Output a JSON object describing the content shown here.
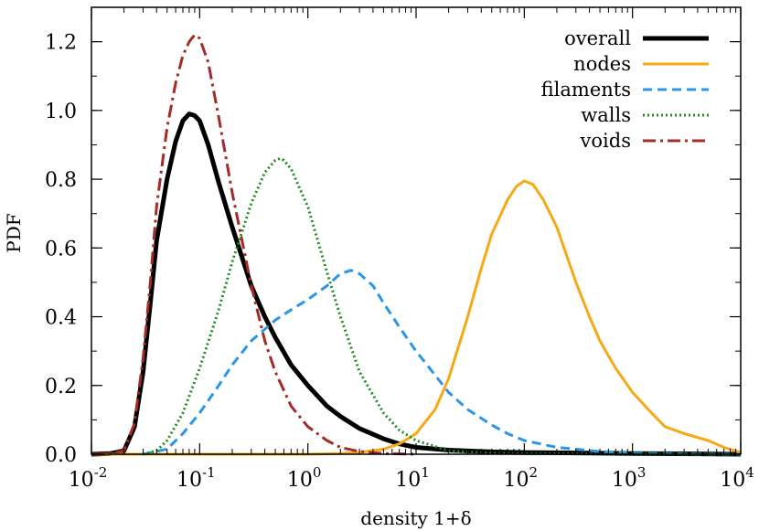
{
  "chart_data": {
    "type": "line",
    "xlabel": "density 1+δ",
    "ylabel": "PDF",
    "x_scale": "log",
    "xlim": [
      0.01,
      10000
    ],
    "ylim": [
      0,
      1.3
    ],
    "x_ticks": [
      {
        "value": 0.01,
        "base": "10",
        "exp": "-2"
      },
      {
        "value": 0.1,
        "base": "10",
        "exp": "-1"
      },
      {
        "value": 1,
        "base": "10",
        "exp": "0"
      },
      {
        "value": 10,
        "base": "10",
        "exp": "1"
      },
      {
        "value": 100,
        "base": "10",
        "exp": "2"
      },
      {
        "value": 1000,
        "base": "10",
        "exp": "3"
      },
      {
        "value": 10000,
        "base": "10",
        "exp": "4"
      }
    ],
    "y_ticks": [
      "0.0",
      "0.2",
      "0.4",
      "0.6",
      "0.8",
      "1.0",
      "1.2"
    ],
    "grid": false,
    "legend_position": "top-right",
    "series": [
      {
        "name": "overall",
        "color": "#000000",
        "dash": "solid",
        "width": 5,
        "points": [
          [
            0.01,
            0
          ],
          [
            0.015,
            0.002
          ],
          [
            0.02,
            0.01
          ],
          [
            0.025,
            0.08
          ],
          [
            0.03,
            0.24
          ],
          [
            0.035,
            0.44
          ],
          [
            0.04,
            0.62
          ],
          [
            0.05,
            0.8
          ],
          [
            0.06,
            0.91
          ],
          [
            0.07,
            0.97
          ],
          [
            0.08,
            0.99
          ],
          [
            0.09,
            0.985
          ],
          [
            0.1,
            0.97
          ],
          [
            0.12,
            0.9
          ],
          [
            0.15,
            0.79
          ],
          [
            0.2,
            0.66
          ],
          [
            0.3,
            0.49
          ],
          [
            0.4,
            0.4
          ],
          [
            0.5,
            0.34
          ],
          [
            0.7,
            0.26
          ],
          [
            1,
            0.2
          ],
          [
            1.5,
            0.14
          ],
          [
            2,
            0.11
          ],
          [
            3,
            0.075
          ],
          [
            5,
            0.045
          ],
          [
            7,
            0.03
          ],
          [
            10,
            0.02
          ],
          [
            20,
            0.012
          ],
          [
            50,
            0.007
          ],
          [
            100,
            0.005
          ],
          [
            1000,
            0.002
          ],
          [
            10000,
            0
          ]
        ]
      },
      {
        "name": "nodes",
        "color": "#f7a817",
        "dash": "solid",
        "width": 3,
        "points": [
          [
            0.01,
            0
          ],
          [
            1,
            0
          ],
          [
            2,
            0.002
          ],
          [
            3,
            0.005
          ],
          [
            5,
            0.015
          ],
          [
            7,
            0.03
          ],
          [
            10,
            0.06
          ],
          [
            15,
            0.13
          ],
          [
            20,
            0.22
          ],
          [
            30,
            0.4
          ],
          [
            40,
            0.54
          ],
          [
            50,
            0.64
          ],
          [
            70,
            0.74
          ],
          [
            85,
            0.78
          ],
          [
            100,
            0.795
          ],
          [
            120,
            0.785
          ],
          [
            150,
            0.74
          ],
          [
            200,
            0.66
          ],
          [
            300,
            0.5
          ],
          [
            400,
            0.4
          ],
          [
            500,
            0.33
          ],
          [
            700,
            0.25
          ],
          [
            1000,
            0.18
          ],
          [
            1500,
            0.12
          ],
          [
            2000,
            0.08
          ],
          [
            3000,
            0.06
          ],
          [
            5000,
            0.04
          ],
          [
            7000,
            0.02
          ],
          [
            10000,
            0.005
          ]
        ]
      },
      {
        "name": "filaments",
        "color": "#2b95e6",
        "dash": "dashed",
        "width": 3,
        "points": [
          [
            0.03,
            0
          ],
          [
            0.05,
            0.015
          ],
          [
            0.07,
            0.06
          ],
          [
            0.1,
            0.12
          ],
          [
            0.15,
            0.2
          ],
          [
            0.2,
            0.26
          ],
          [
            0.3,
            0.33
          ],
          [
            0.5,
            0.39
          ],
          [
            0.7,
            0.42
          ],
          [
            1,
            0.45
          ],
          [
            1.5,
            0.49
          ],
          [
            2,
            0.525
          ],
          [
            2.5,
            0.535
          ],
          [
            3,
            0.525
          ],
          [
            4,
            0.49
          ],
          [
            5,
            0.44
          ],
          [
            7,
            0.37
          ],
          [
            10,
            0.3
          ],
          [
            15,
            0.23
          ],
          [
            20,
            0.18
          ],
          [
            30,
            0.13
          ],
          [
            50,
            0.085
          ],
          [
            70,
            0.06
          ],
          [
            100,
            0.04
          ],
          [
            200,
            0.02
          ],
          [
            500,
            0.008
          ],
          [
            1000,
            0.003
          ],
          [
            3000,
            0.001
          ],
          [
            10000,
            0
          ]
        ]
      },
      {
        "name": "walls",
        "color": "#228b22",
        "dash": "dotted",
        "width": 3,
        "points": [
          [
            0.03,
            0
          ],
          [
            0.04,
            0.01
          ],
          [
            0.05,
            0.04
          ],
          [
            0.07,
            0.12
          ],
          [
            0.1,
            0.25
          ],
          [
            0.15,
            0.42
          ],
          [
            0.2,
            0.56
          ],
          [
            0.3,
            0.73
          ],
          [
            0.4,
            0.82
          ],
          [
            0.5,
            0.855
          ],
          [
            0.55,
            0.86
          ],
          [
            0.6,
            0.855
          ],
          [
            0.7,
            0.83
          ],
          [
            1,
            0.72
          ],
          [
            1.5,
            0.53
          ],
          [
            2,
            0.4
          ],
          [
            3,
            0.24
          ],
          [
            5,
            0.12
          ],
          [
            7,
            0.07
          ],
          [
            10,
            0.04
          ],
          [
            20,
            0.01
          ],
          [
            50,
            0.003
          ],
          [
            100,
            0.001
          ],
          [
            10000,
            0
          ]
        ]
      },
      {
        "name": "voids",
        "color": "#a52a2a",
        "dash": "dashdot",
        "width": 3,
        "points": [
          [
            0.01,
            0
          ],
          [
            0.015,
            0.002
          ],
          [
            0.02,
            0.01
          ],
          [
            0.025,
            0.09
          ],
          [
            0.03,
            0.28
          ],
          [
            0.035,
            0.5
          ],
          [
            0.04,
            0.72
          ],
          [
            0.05,
            0.95
          ],
          [
            0.06,
            1.08
          ],
          [
            0.07,
            1.16
          ],
          [
            0.08,
            1.2
          ],
          [
            0.09,
            1.22
          ],
          [
            0.1,
            1.21
          ],
          [
            0.12,
            1.14
          ],
          [
            0.15,
            0.98
          ],
          [
            0.2,
            0.76
          ],
          [
            0.3,
            0.49
          ],
          [
            0.4,
            0.33
          ],
          [
            0.5,
            0.24
          ],
          [
            0.7,
            0.14
          ],
          [
            1,
            0.08
          ],
          [
            1.5,
            0.04
          ],
          [
            2,
            0.02
          ],
          [
            3,
            0.008
          ],
          [
            5,
            0.002
          ],
          [
            10,
            0
          ]
        ]
      }
    ]
  }
}
